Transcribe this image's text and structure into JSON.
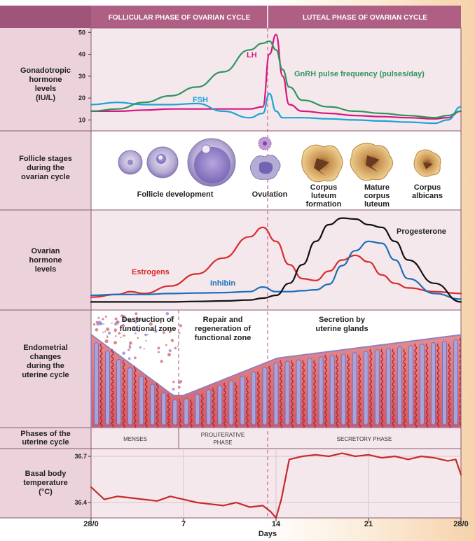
{
  "headers": {
    "follicular": "FOLLICULAR PHASE OF OVARIAN CYCLE",
    "luteal": "LUTEAL PHASE OF OVARIAN CYCLE"
  },
  "rows": {
    "gonadotropic": [
      "Gonadotropic",
      "hormone",
      "levels",
      "(IU/L)"
    ],
    "follicle": [
      "Follicle stages",
      "during the",
      "ovarian cycle"
    ],
    "ovarian": [
      "Ovarian",
      "hormone",
      "levels"
    ],
    "endometrial": [
      "Endometrial",
      "changes",
      "during the",
      "uterine cycle"
    ],
    "uterine_phases": [
      "Phases of the",
      "uterine cycle"
    ],
    "bbt": [
      "Basal body",
      "temperature",
      "(°C)"
    ]
  },
  "gonadotropic_axis": [
    "50",
    "40",
    "30",
    "20",
    "10"
  ],
  "gonadotropic_labels": {
    "lh": "LH",
    "fsh": "FSH",
    "gnrh": "GnRH pulse frequency (pulses/day)"
  },
  "follicle_captions": {
    "development": "Follicle development",
    "ovulation": "Ovulation",
    "corpus_formation": [
      "Corpus",
      "luteum",
      "formation"
    ],
    "mature": [
      "Mature",
      "corpus",
      "luteum"
    ],
    "albicans": [
      "Corpus",
      "albicans"
    ]
  },
  "ovarian_labels": {
    "estrogens": "Estrogens",
    "inhibin": "Inhibin",
    "progesterone": "Progesterone"
  },
  "endometrial_labels": {
    "destruction": [
      "Destruction of",
      "functional zone"
    ],
    "repair": [
      "Repair and",
      "regeneration of",
      "functional zone"
    ],
    "secretion": [
      "Secretion by",
      "uterine glands"
    ]
  },
  "uterine_phases": {
    "menses": "MENSES",
    "proliferative": [
      "PROLIFERATIVE",
      "PHASE"
    ],
    "secretory": "SECRETORY PHASE"
  },
  "bbt_axis": [
    "36.7",
    "36.4"
  ],
  "days_axis": [
    "28/0",
    "7",
    "14",
    "21",
    "28/0"
  ],
  "days_label": "Days",
  "colors": {
    "lh": "#d6177f",
    "fsh": "#1ea3d6",
    "gnrh": "#2e9560",
    "estrogens": "#d82b2b",
    "inhibin": "#1c6fb8",
    "progesterone": "#111111",
    "bbt": "#c72a2a",
    "header": "#b05f84",
    "label_panel": "#eed5dc"
  },
  "chart_data": [
    {
      "type": "line",
      "x": [
        0,
        2,
        4,
        6,
        8,
        10,
        12,
        13,
        13.5,
        14,
        14.5,
        15,
        16,
        18,
        20,
        22,
        24,
        26,
        27,
        28
      ],
      "series": [
        {
          "name": "LH",
          "values": [
            14,
            14,
            14.5,
            15,
            15,
            15,
            15,
            16,
            40,
            49,
            30,
            17,
            14,
            13,
            12,
            11.5,
            11,
            10.5,
            11,
            14
          ]
        },
        {
          "name": "FSH",
          "values": [
            17,
            18,
            17,
            17,
            17.5,
            14,
            11,
            13,
            22,
            14,
            11,
            11,
            11,
            10.5,
            10,
            9.5,
            9,
            8.5,
            10,
            16
          ]
        },
        {
          "name": "GnRH pulse frequency (pulses/day)",
          "values": [
            14,
            15,
            18,
            21,
            25,
            32,
            42,
            45,
            46,
            42,
            33,
            25,
            19,
            16,
            14,
            13,
            12,
            11,
            12,
            14
          ]
        }
      ],
      "ylim": [
        5,
        52
      ]
    },
    {
      "type": "line",
      "x": [
        0,
        2,
        3,
        4,
        6,
        8,
        10,
        12,
        13,
        14,
        15,
        16,
        17,
        18,
        19,
        20,
        21,
        22,
        23,
        24,
        26,
        28
      ],
      "series": [
        {
          "name": "Estrogens",
          "values": [
            10,
            13,
            16,
            14,
            22,
            35,
            52,
            75,
            85,
            70,
            45,
            30,
            28,
            38,
            50,
            55,
            48,
            34,
            25,
            20,
            16,
            14
          ]
        },
        {
          "name": "Inhibin",
          "values": [
            12,
            13,
            13,
            13,
            14,
            14.5,
            15,
            16,
            21,
            16,
            16,
            17,
            18,
            24,
            44,
            60,
            70,
            68,
            50,
            30,
            14,
            8
          ]
        },
        {
          "name": "Progesterone",
          "values": [
            5,
            5,
            5,
            5,
            5,
            5.5,
            6,
            7,
            9,
            12,
            25,
            45,
            70,
            88,
            95,
            94,
            88,
            85,
            70,
            50,
            25,
            5
          ]
        }
      ],
      "ylim": [
        0,
        100
      ]
    },
    {
      "type": "line",
      "x": [
        0,
        1,
        2,
        3,
        4,
        5,
        6,
        7,
        8,
        9,
        10,
        11,
        12,
        13,
        13.6,
        14,
        14.4,
        15,
        16,
        17,
        18,
        19,
        20,
        21,
        22,
        23,
        24,
        25,
        26,
        27,
        27.6,
        28
      ],
      "series": [
        {
          "name": "BBT",
          "values": [
            36.5,
            36.42,
            36.44,
            36.43,
            36.42,
            36.41,
            36.44,
            36.42,
            36.4,
            36.39,
            36.38,
            36.4,
            36.37,
            36.38,
            36.34,
            36.3,
            36.42,
            36.68,
            36.7,
            36.71,
            36.7,
            36.72,
            36.7,
            36.71,
            36.69,
            36.7,
            36.68,
            36.7,
            36.69,
            36.67,
            36.68,
            36.58
          ]
        }
      ],
      "ylim": [
        36.3,
        36.75
      ]
    }
  ]
}
